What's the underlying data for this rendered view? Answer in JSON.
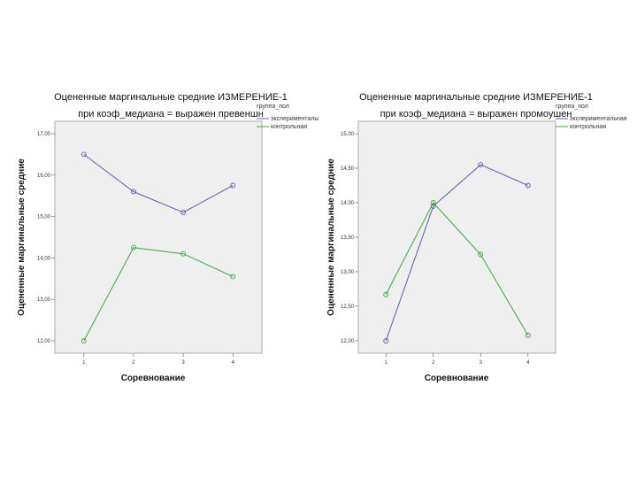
{
  "chart_data": [
    {
      "type": "line",
      "title": "Оцененные маргинальные средние ИЗМЕРЕНИЕ-1",
      "subtitle": "при коэф_медиана = выражен превеншн",
      "xlabel": "Соревнование",
      "ylabel": "Оцененные маргинальные средние",
      "categories": [
        "1",
        "2",
        "3",
        "4"
      ],
      "ylim": [
        12.0,
        17.0
      ],
      "yticks": [
        12.0,
        13.0,
        14.0,
        15.0,
        16.0,
        17.0
      ],
      "ytick_labels": [
        "12,00",
        "13,00",
        "14,00",
        "15,00",
        "16,00",
        "17,00"
      ],
      "legend_title": "группа_пол",
      "legend_position": "top-right",
      "series": [
        {
          "name": "экспериментальная",
          "color": "#5b5bb5",
          "values": [
            16.5,
            15.6,
            15.1,
            15.75
          ]
        },
        {
          "name": "контрольная",
          "color": "#3aa83a",
          "values": [
            12.0,
            14.25,
            14.1,
            13.55
          ]
        }
      ]
    },
    {
      "type": "line",
      "title": "Оцененные маргинальные средние ИЗМЕРЕНИЕ-1",
      "subtitle": "при коэф_медиана = выражен промоушен",
      "xlabel": "Соревнование",
      "ylabel": "Оцененные маргинальные средние",
      "categories": [
        "1",
        "2",
        "3",
        "4"
      ],
      "ylim": [
        12.0,
        15.0
      ],
      "yticks": [
        12.0,
        12.5,
        13.0,
        13.5,
        14.0,
        14.5,
        15.0
      ],
      "ytick_labels": [
        "12,00",
        "12,50",
        "13,00",
        "13,50",
        "14,00",
        "14,50",
        "15,00"
      ],
      "legend_title": "группа_пол",
      "legend_position": "top-right",
      "series": [
        {
          "name": "экспериментальная",
          "color": "#5b5bb5",
          "values": [
            12.0,
            13.95,
            14.55,
            14.25
          ]
        },
        {
          "name": "контрольная",
          "color": "#3aa83a",
          "values": [
            12.67,
            14.0,
            13.25,
            12.08
          ]
        }
      ]
    }
  ]
}
